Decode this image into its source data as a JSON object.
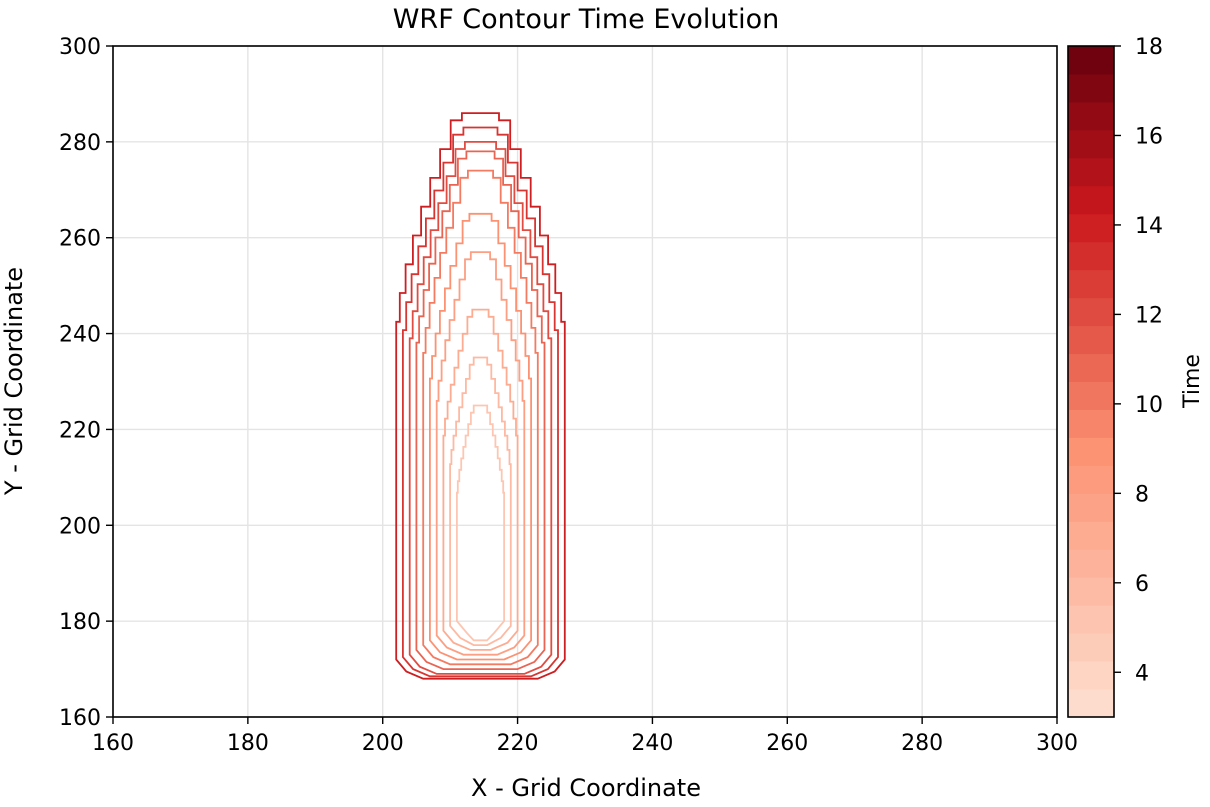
{
  "chart_data": {
    "type": "contour",
    "title": "WRF Contour Time Evolution",
    "xlabel": "X - Grid Coordinate",
    "ylabel": "Y - Grid Coordinate",
    "xlim": [
      160,
      300
    ],
    "ylim": [
      160,
      300
    ],
    "xticks": [
      160,
      180,
      200,
      220,
      240,
      260,
      280,
      300
    ],
    "yticks": [
      160,
      180,
      200,
      220,
      240,
      260,
      280,
      300
    ],
    "grid": true,
    "colorbar": {
      "label": "Time",
      "range": [
        3,
        18
      ],
      "ticks": [
        4,
        6,
        8,
        10,
        12,
        14,
        16,
        18
      ],
      "colormap": "Reds",
      "color_low": "#fee0d2",
      "color_high": "#67000d"
    },
    "contours": [
      {
        "time": 5,
        "xmin": 211,
        "xmax": 218,
        "ymin": 176,
        "ymax": 225
      },
      {
        "time": 6,
        "xmin": 210,
        "xmax": 219,
        "ymin": 175,
        "ymax": 235
      },
      {
        "time": 7,
        "xmin": 209,
        "xmax": 220,
        "ymin": 174,
        "ymax": 245
      },
      {
        "time": 8,
        "xmin": 208,
        "xmax": 221,
        "ymin": 173,
        "ymax": 257
      },
      {
        "time": 9,
        "xmin": 207,
        "xmax": 222,
        "ymin": 172,
        "ymax": 265
      },
      {
        "time": 10,
        "xmin": 206,
        "xmax": 223,
        "ymin": 171,
        "ymax": 274
      },
      {
        "time": 11,
        "xmin": 205,
        "xmax": 224,
        "ymin": 170,
        "ymax": 278
      },
      {
        "time": 12,
        "xmin": 204,
        "xmax": 225,
        "ymin": 169,
        "ymax": 280
      },
      {
        "time": 13,
        "xmin": 203,
        "xmax": 226,
        "ymin": 168.5,
        "ymax": 283
      },
      {
        "time": 14,
        "xmin": 202,
        "xmax": 227,
        "ymin": 168,
        "ymax": 286
      }
    ]
  }
}
